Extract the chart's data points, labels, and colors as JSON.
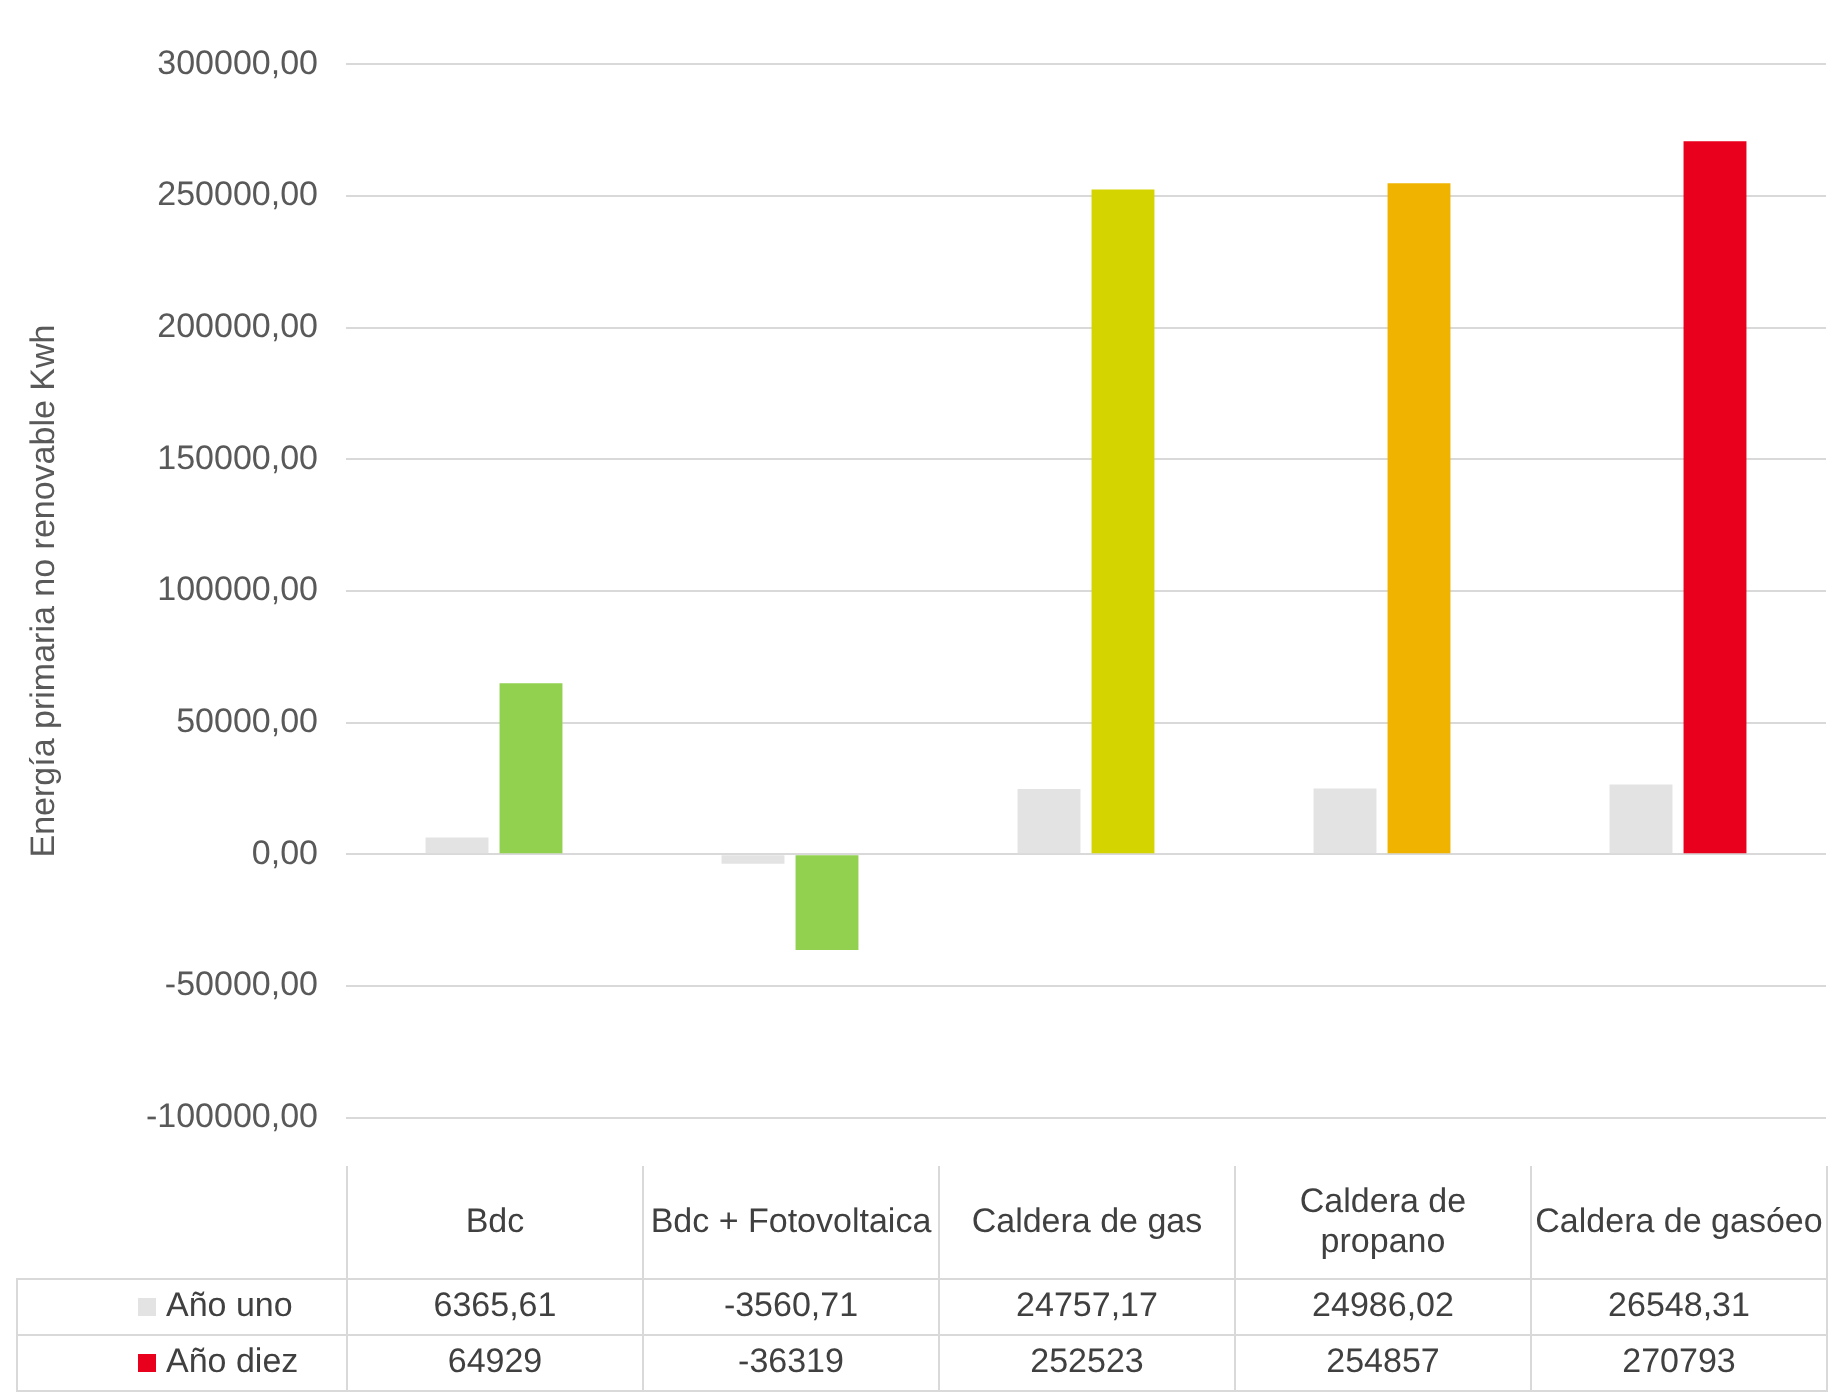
{
  "chart_data": {
    "type": "bar",
    "ylabel": "Energía primaria no renovable Kwh",
    "categories": [
      "Bdc",
      "Bdc + Fotovoltaica",
      "Caldera de gas",
      "Caldera de propano",
      "Caldera de gasóeo"
    ],
    "series": [
      {
        "name": "Año uno",
        "color": "#e3e3e3",
        "values": [
          6365.61,
          -3560.71,
          24757.17,
          24986.02,
          26548.31
        ],
        "value_labels": [
          "6365,61",
          "-3560,71",
          "24757,17",
          "24986,02",
          "26548,31"
        ]
      },
      {
        "name": "Año diez",
        "color": "#e8001c",
        "colors": [
          "#92d050",
          "#92d050",
          "#d4d400",
          "#f0b400",
          "#e8001c"
        ],
        "values": [
          64929,
          -36319,
          252523,
          254857,
          270793
        ],
        "value_labels": [
          "64929",
          "-36319",
          "252523",
          "254857",
          "270793"
        ]
      }
    ],
    "ylim": [
      -100000,
      300000
    ],
    "yticks": [
      {
        "value": -100000,
        "label": "-100000,00"
      },
      {
        "value": -50000,
        "label": "-50000,00"
      },
      {
        "value": 0,
        "label": "0,00"
      },
      {
        "value": 50000,
        "label": "50000,00"
      },
      {
        "value": 100000,
        "label": "100000,00"
      },
      {
        "value": 150000,
        "label": "150000,00"
      },
      {
        "value": 200000,
        "label": "200000,00"
      },
      {
        "value": 250000,
        "label": "250000,00"
      },
      {
        "value": 300000,
        "label": "300000,00"
      }
    ],
    "grid": "y",
    "legend": "bottom"
  }
}
